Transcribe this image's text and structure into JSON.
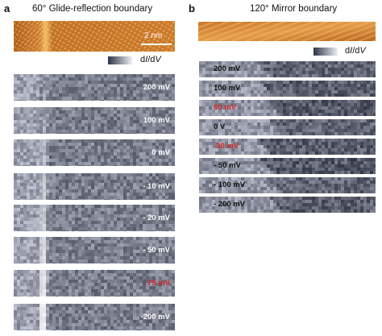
{
  "panel_a": {
    "letter": "a",
    "title": "60° Glide-reflection boundary",
    "scale_bar_label": "2 nm",
    "colorbar_label": "dI/dV",
    "maps": [
      {
        "label": "200 mV",
        "highlight": false
      },
      {
        "label": "100 mV",
        "highlight": false
      },
      {
        "label": "0 mV",
        "highlight": false
      },
      {
        "label": "- 10 mV",
        "highlight": false
      },
      {
        "label": "- 20 mV",
        "highlight": false
      },
      {
        "label": "- 50 mV",
        "highlight": false
      },
      {
        "label": "- 75 mV",
        "highlight": true
      },
      {
        "label": "-200 mV",
        "highlight": false
      }
    ]
  },
  "panel_b": {
    "letter": "b",
    "title": "120° Mirror boundary",
    "colorbar_label": "dI/dV",
    "maps": [
      {
        "label": "200 mV",
        "highlight": false
      },
      {
        "label": "100 mV",
        "highlight": false
      },
      {
        "label": "60 mV",
        "highlight": true
      },
      {
        "label": "0 V",
        "highlight": false
      },
      {
        "label": "-30 mV",
        "highlight": true
      },
      {
        "label": "- 50 mV",
        "highlight": false
      },
      {
        "label": "- 100 mV",
        "highlight": false
      },
      {
        "label": "- 200 mV",
        "highlight": false
      }
    ]
  },
  "colors": {
    "highlight_label": "#d8262a",
    "light_label": "#ffffff",
    "dark_label": "#111111",
    "topo_dark": "#a4561c",
    "topo_light": "#f0b45a",
    "map_dark": "#2c3346",
    "map_light": "#eef1f5"
  }
}
